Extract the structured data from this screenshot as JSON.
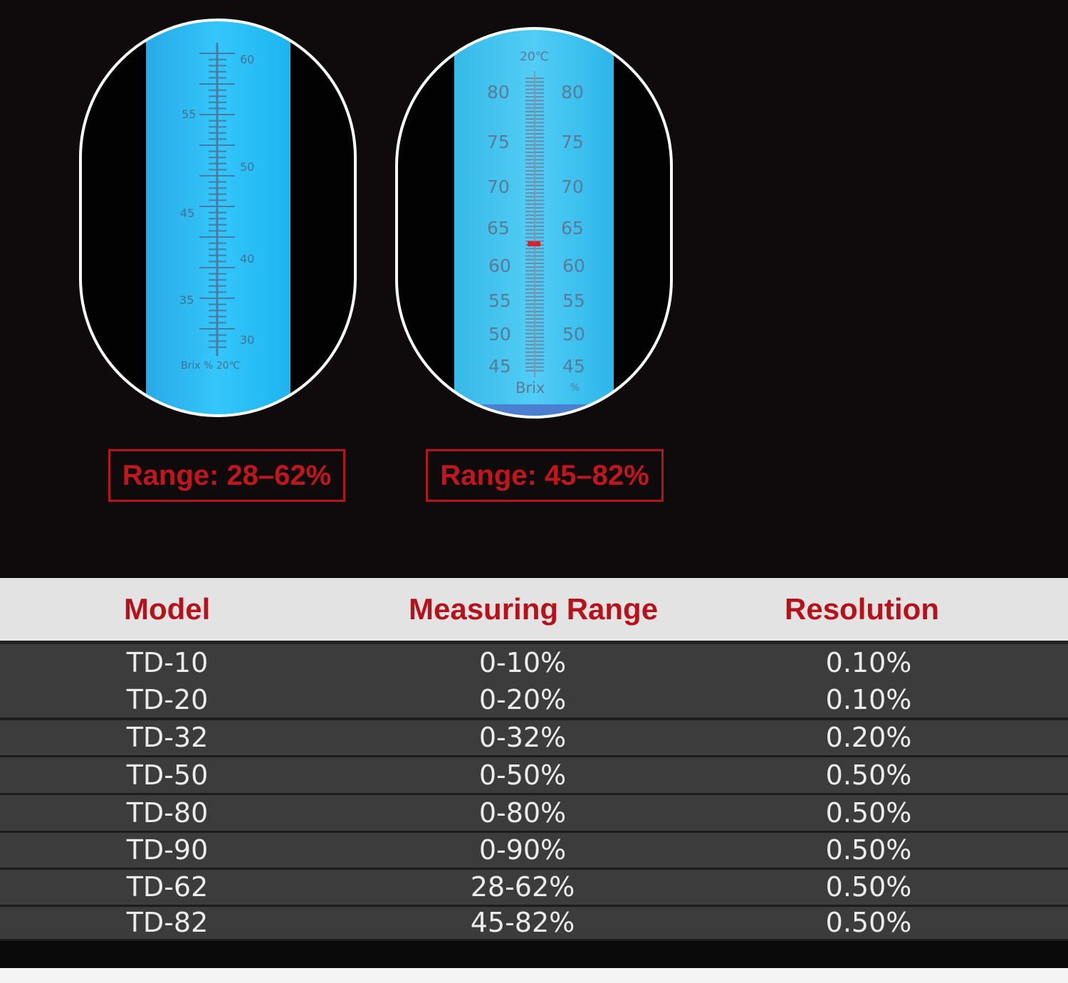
{
  "scope_left": {
    "right_labels": [
      "60",
      "50",
      "40",
      "30"
    ],
    "left_labels": [
      "55",
      "45",
      "35"
    ],
    "bottom_caption": "Brix % 20℃"
  },
  "scope_right": {
    "top_caption": "20℃",
    "labels": [
      "80",
      "75",
      "70",
      "65",
      "60",
      "55",
      "50",
      "45"
    ],
    "bottom_left": "Brix",
    "bottom_right": "%"
  },
  "range_left": "Range: 28–62%",
  "range_right": "Range: 45–82%",
  "table": {
    "headers": [
      "Model",
      "Measuring Range",
      "Resolution"
    ],
    "rows": [
      [
        "TD-10",
        "0-10%",
        "0.10%"
      ],
      [
        "TD-20",
        "0-20%",
        "0.10%"
      ],
      [
        "TD-32",
        "0-32%",
        "0.20%"
      ],
      [
        "TD-50",
        "0-50%",
        "0.50%"
      ],
      [
        "TD-80",
        "0-80%",
        "0.50%"
      ],
      [
        "TD-90",
        "0-90%",
        "0.50%"
      ],
      [
        "TD-62",
        "28-62%",
        "0.50%"
      ],
      [
        "TD-82",
        "45-82%",
        "0.50%"
      ]
    ]
  },
  "colors": {
    "accent_red": "#c0171d",
    "scope_blue": "#1fb8f5",
    "scale_text": "#4a6e8c"
  }
}
